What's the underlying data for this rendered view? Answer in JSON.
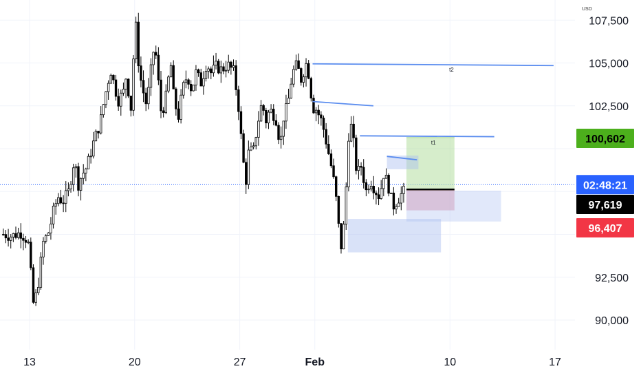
{
  "chart_data": {
    "type": "candlestick",
    "currency": "USD",
    "y_axis": {
      "range": [
        88500,
        108500
      ],
      "ticks": [
        90000,
        92500,
        95000,
        97500,
        100000,
        102500,
        105000,
        107500
      ],
      "tick_labels": [
        "90,000",
        "92,500",
        "",
        "",
        "",
        "102,500",
        "105,000",
        "107,500"
      ]
    },
    "x_axis": {
      "range_day": [
        -1.75,
        23.4
      ],
      "ticks": [
        {
          "day": 0,
          "label": "13",
          "bold": false
        },
        {
          "day": 7,
          "label": "20",
          "bold": false
        },
        {
          "day": 14,
          "label": "27",
          "bold": false
        },
        {
          "day": 19,
          "label": "Feb",
          "bold": true
        },
        {
          "day": 28,
          "label": "10",
          "bold": false
        },
        {
          "day": 35,
          "label": "17",
          "bold": false
        }
      ]
    },
    "grid": true,
    "colors": {
      "up": "#ffffff",
      "down": "#000000",
      "wick": "#000000",
      "grid": "#f0f3fa",
      "trendline": "#5b8def",
      "current_price_line": "#2962ff"
    },
    "current_price": 97619,
    "price_badges": [
      {
        "label": "100,602",
        "value": 100602,
        "bg": "#4caf1c",
        "fg": "#000000"
      },
      {
        "label": "02:48:21",
        "value": 97900,
        "bg": "#2962ff",
        "fg": "#ffffff"
      },
      {
        "label": "97,619",
        "value": 97619,
        "bg": "#000000",
        "fg": "#ffffff"
      },
      {
        "label": "96,407",
        "value": 96407,
        "bg": "#f23645",
        "fg": "#ffffff"
      }
    ],
    "candles_day_span": {
      "start": -1.75,
      "end": 25.05
    },
    "candles_ohlc_anchor": [
      [
        -1.75,
        95000
      ],
      [
        -1.2,
        94900
      ],
      [
        -0.6,
        95100
      ],
      [
        -0.1,
        94600
      ],
      [
        0.25,
        91000
      ],
      [
        0.5,
        91600
      ],
      [
        0.9,
        94500
      ],
      [
        1.3,
        95200
      ],
      [
        1.6,
        96400
      ],
      [
        1.9,
        97200
      ],
      [
        2.2,
        96900
      ],
      [
        2.6,
        97500
      ],
      [
        3.0,
        99500
      ],
      [
        3.2,
        97800
      ],
      [
        3.5,
        98500
      ],
      [
        3.8,
        98900
      ],
      [
        4.3,
        100500
      ],
      [
        4.7,
        101500
      ],
      [
        5.0,
        103000
      ],
      [
        5.4,
        104600
      ],
      [
        5.7,
        103500
      ],
      [
        5.9,
        102800
      ],
      [
        6.3,
        103400
      ],
      [
        6.5,
        104700
      ],
      [
        6.7,
        101500
      ],
      [
        6.9,
        105000
      ],
      [
        7.05,
        107500
      ],
      [
        7.3,
        104500
      ],
      [
        7.55,
        103400
      ],
      [
        7.8,
        102500
      ],
      [
        8.0,
        104000
      ],
      [
        8.3,
        106000
      ],
      [
        8.5,
        105000
      ],
      [
        8.7,
        102200
      ],
      [
        9.0,
        102500
      ],
      [
        9.4,
        105000
      ],
      [
        9.6,
        103000
      ],
      [
        9.9,
        101800
      ],
      [
        10.2,
        103500
      ],
      [
        10.5,
        104300
      ],
      [
        10.8,
        103400
      ],
      [
        11.1,
        104500
      ],
      [
        11.4,
        103800
      ],
      [
        11.8,
        105000
      ],
      [
        12.1,
        104400
      ],
      [
        12.4,
        104800
      ],
      [
        12.8,
        104600
      ],
      [
        13.2,
        104900
      ],
      [
        13.6,
        104500
      ],
      [
        13.9,
        102600
      ],
      [
        14.2,
        99500
      ],
      [
        14.4,
        98000
      ],
      [
        14.6,
        99900
      ],
      [
        14.9,
        99800
      ],
      [
        15.2,
        101500
      ],
      [
        15.5,
        102800
      ],
      [
        15.7,
        101500
      ],
      [
        16.0,
        102300
      ],
      [
        16.4,
        101800
      ],
      [
        16.7,
        100200
      ],
      [
        16.9,
        101800
      ],
      [
        17.2,
        102600
      ],
      [
        17.5,
        104400
      ],
      [
        17.8,
        104900
      ],
      [
        18.1,
        104000
      ],
      [
        18.4,
        105000
      ],
      [
        18.7,
        104000
      ],
      [
        18.8,
        102400
      ],
      [
        19.1,
        102300
      ],
      [
        19.5,
        101500
      ],
      [
        19.9,
        99800
      ],
      [
        20.2,
        98500
      ],
      [
        20.5,
        96500
      ],
      [
        20.7,
        94000
      ],
      [
        20.9,
        95200
      ],
      [
        21.1,
        98000
      ],
      [
        21.3,
        101700
      ],
      [
        21.5,
        101000
      ],
      [
        21.8,
        98500
      ],
      [
        22.1,
        99000
      ],
      [
        22.4,
        97500
      ],
      [
        22.7,
        98200
      ],
      [
        23.0,
        97600
      ],
      [
        23.3,
        97200
      ],
      [
        23.6,
        98600
      ],
      [
        23.9,
        97800
      ],
      [
        24.2,
        96600
      ],
      [
        24.5,
        97000
      ],
      [
        24.8,
        97400
      ],
      [
        25.05,
        97619
      ]
    ],
    "trendlines": [
      {
        "from": {
          "day": 18.85,
          "value": 104950
        },
        "to": {
          "day": 34.9,
          "value": 104850
        }
      },
      {
        "from": {
          "day": 18.85,
          "value": 102750
        },
        "to": {
          "day": 22.9,
          "value": 102500
        }
      },
      {
        "from": {
          "day": 22.0,
          "value": 100750
        },
        "to": {
          "day": 30.95,
          "value": 100700
        }
      },
      {
        "from": {
          "day": 23.8,
          "value": 99550
        },
        "to": {
          "day": 25.8,
          "value": 99350
        }
      }
    ],
    "zones": [
      {
        "name": "target-zone",
        "from_day": 25.1,
        "to_day": 28.3,
        "top": 100650,
        "bottom": 97650,
        "color": "rgba(165,214,140,0.45)"
      },
      {
        "name": "stop-zone",
        "from_day": 25.1,
        "to_day": 28.3,
        "top": 97600,
        "bottom": 96400,
        "color": "rgba(224,130,150,0.45)"
      },
      {
        "name": "blue-zone-right",
        "from_day": 25.1,
        "to_day": 31.4,
        "top": 97550,
        "bottom": 95750,
        "color": "rgba(170,190,240,0.35)"
      },
      {
        "name": "blue-zone-lower",
        "from_day": 21.2,
        "to_day": 27.4,
        "top": 95900,
        "bottom": 93950,
        "color": "rgba(170,190,240,0.45)"
      },
      {
        "name": "blue-zone-small",
        "from_day": 23.8,
        "to_day": 25.9,
        "top": 99600,
        "bottom": 98800,
        "color": "rgba(170,190,240,0.45)"
      }
    ],
    "entry_line": {
      "from_day": 25.1,
      "to_day": 28.3,
      "value": 97620
    },
    "annotations": [
      {
        "text": "t1",
        "day": 26.9,
        "value": 100250
      },
      {
        "text": "t2",
        "day": 28.1,
        "value": 104500
      }
    ]
  }
}
